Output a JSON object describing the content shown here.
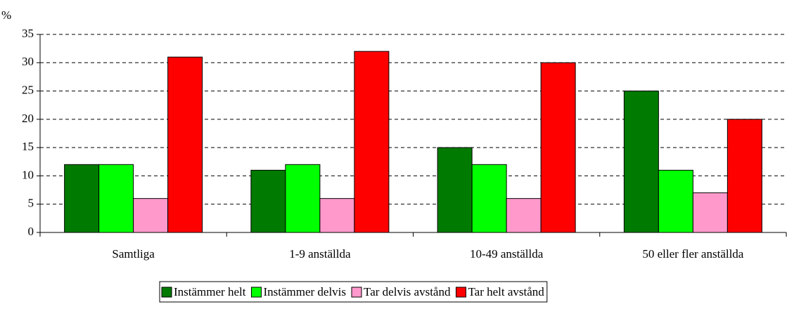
{
  "chart_data": {
    "type": "bar",
    "y_label": "%",
    "categories": [
      "Samtliga",
      "1-9 anställda",
      "10-49 anställda",
      "50 eller fler anställda"
    ],
    "series": [
      {
        "name": "Instämmer helt",
        "color": "#007a00",
        "values": [
          12,
          11,
          15,
          25
        ]
      },
      {
        "name": "Instämmer delvis",
        "color": "#00ff00",
        "values": [
          12,
          12,
          12,
          11
        ]
      },
      {
        "name": "Tar delvis avstånd",
        "color": "#ff99cc",
        "values": [
          6,
          6,
          6,
          7
        ]
      },
      {
        "name": "Tar helt avstånd",
        "color": "#ff0000",
        "values": [
          31,
          32,
          30,
          20
        ]
      }
    ],
    "ylim": [
      0,
      35
    ],
    "yticks": [
      0,
      5,
      10,
      15,
      20,
      25,
      30,
      35
    ],
    "grid": true,
    "legend": "bottom"
  }
}
